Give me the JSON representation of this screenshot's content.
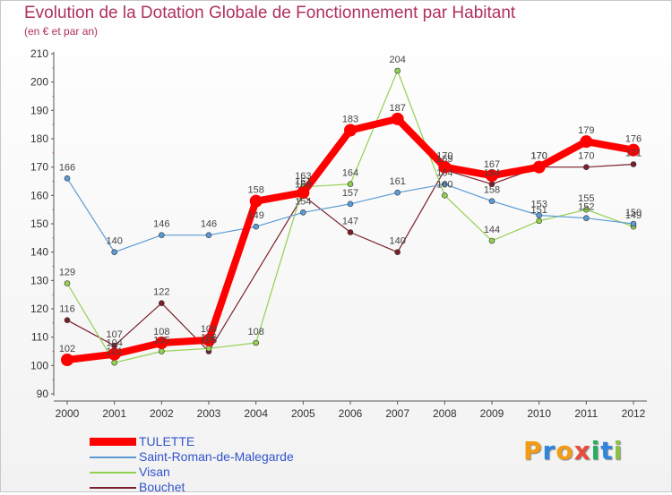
{
  "header": {
    "title": "Evolution de la Dotation Globale de Fonctionnement par Habitant",
    "subtitle": "(en € et par an)"
  },
  "brand": {
    "letters": [
      "P",
      "r",
      "o",
      "x",
      "i",
      "t",
      "i"
    ],
    "colors": [
      "#f39c12",
      "#2e86de",
      "#f39c12",
      "#e74c3c",
      "#27ae60",
      "#2e86de",
      "#8bc34a"
    ]
  },
  "chart_data": {
    "type": "line",
    "x": [
      "2000",
      "2001",
      "2002",
      "2003",
      "2004",
      "2005",
      "2006",
      "2007",
      "2008",
      "2009",
      "2010",
      "2011",
      "2012"
    ],
    "ylim": [
      90,
      210
    ],
    "yticks": [
      90,
      100,
      110,
      120,
      130,
      140,
      150,
      160,
      170,
      180,
      190,
      200,
      210
    ],
    "grid": false,
    "legend_position": "bottom-left",
    "series": [
      {
        "name": "TULETTE",
        "color": "#ff0000",
        "width": 8,
        "marker": 7,
        "values": [
          102,
          104,
          108,
          109,
          158,
          161,
          183,
          187,
          170,
          167,
          170,
          179,
          176
        ],
        "labels": [
          "102",
          "104",
          "108",
          "109",
          "158",
          "161",
          "183",
          "187",
          "170",
          "167",
          "170",
          "179",
          "176"
        ]
      },
      {
        "name": "Saint-Roman-de-Malegarde",
        "color": "#5b9bd5",
        "width": 1.2,
        "marker": 3,
        "values": [
          166,
          140,
          146,
          146,
          149,
          154,
          157,
          161,
          164,
          158,
          153,
          152,
          150
        ],
        "labels": [
          "166",
          "140",
          "146",
          "146",
          "149",
          "154",
          "157",
          "161",
          "164",
          "158",
          "153",
          "152",
          "150"
        ]
      },
      {
        "name": "Visan",
        "color": "#92d050",
        "width": 1.2,
        "marker": 3,
        "values": [
          129,
          101,
          105,
          106,
          108,
          163,
          164,
          204,
          160,
          144,
          151,
          155,
          149
        ],
        "labels": [
          "129",
          "101",
          "105",
          "106",
          "108",
          "163",
          "164",
          "204",
          "160",
          "144",
          "151",
          "155",
          "149"
        ]
      },
      {
        "name": "Bouchet",
        "color": "#7b1f2a",
        "width": 1.2,
        "marker": 3,
        "values": [
          116,
          107,
          122,
          105,
          null,
          160,
          147,
          140,
          169,
          164,
          170,
          170,
          171
        ],
        "labels": [
          "116",
          "107",
          "122",
          "105",
          "",
          "160",
          "147",
          "140",
          "169",
          "164",
          "170",
          "170",
          "171"
        ]
      }
    ]
  }
}
